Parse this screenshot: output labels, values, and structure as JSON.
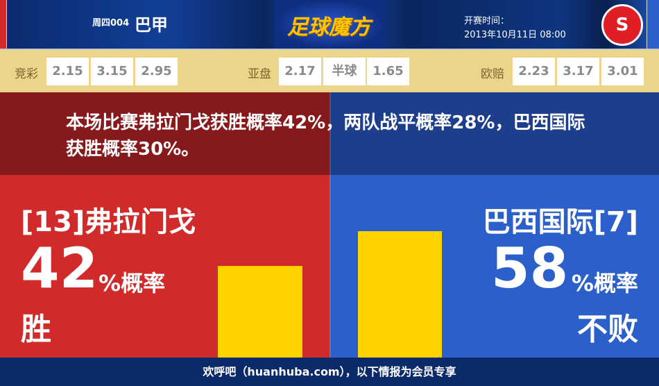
{
  "header": {
    "weekday_code": "周四004",
    "league": "巴甲",
    "logo_text": "足球魔方",
    "kickoff_label": "开赛时间：",
    "kickoff_time": "2013年10月11日 08:00",
    "away_logo_icon": "internacional-crest-icon"
  },
  "odds": {
    "jingcai": {
      "label": "竞彩",
      "values": [
        "2.15",
        "3.15",
        "2.95"
      ]
    },
    "yapan": {
      "label": "亚盘",
      "values": [
        "2.17",
        "半球",
        "1.65"
      ]
    },
    "oupei": {
      "label": "欧赔",
      "values": [
        "2.23",
        "3.17",
        "3.01"
      ]
    }
  },
  "summary": "本场比赛弗拉门戈获胜概率42%，两队战平概率28%，巴西国际获胜概率30%。",
  "home": {
    "name": "[13]弗拉门戈",
    "percent": "42",
    "unit": "%概率",
    "outcome": "胜",
    "bar_value": 42,
    "color": "#d02a2a"
  },
  "away": {
    "name": "巴西国际[7]",
    "percent": "58",
    "unit": "%概率",
    "outcome": "不败",
    "bar_value": 58,
    "color": "#2b5fca"
  },
  "bar_color": "#ffd200",
  "footer": "欢呼吧（huanhuba.com），以下情报为会员专享"
}
